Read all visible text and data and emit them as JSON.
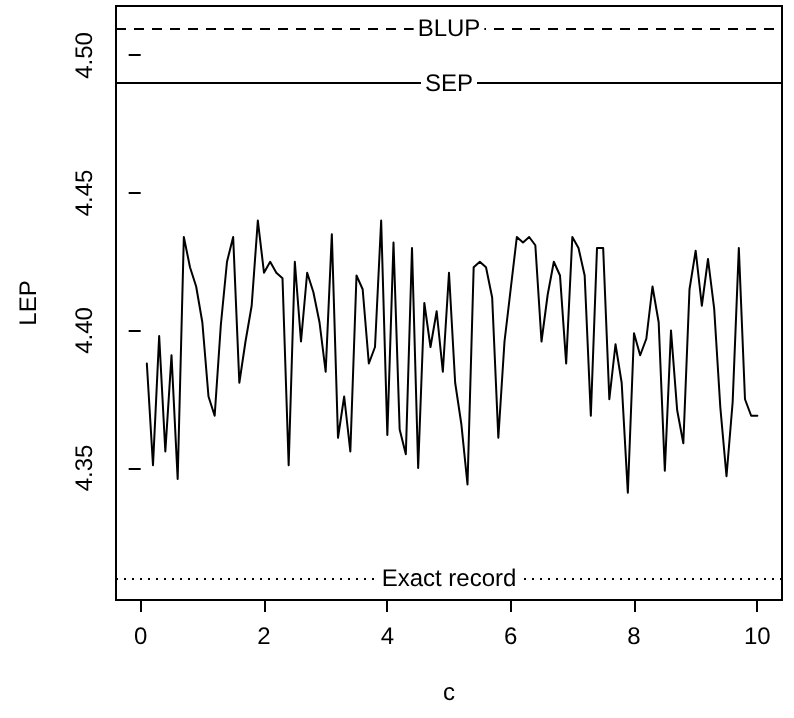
{
  "chart_data": {
    "type": "line",
    "xlabel": "c",
    "ylabel": "LEP",
    "x": [
      0.1,
      0.2,
      0.3,
      0.4,
      0.5,
      0.6,
      0.7,
      0.8,
      0.9,
      1.0,
      1.1,
      1.2,
      1.3,
      1.4,
      1.5,
      1.6,
      1.7,
      1.8,
      1.9,
      2.0,
      2.1,
      2.2,
      2.3,
      2.4,
      2.5,
      2.6,
      2.7,
      2.8,
      2.9,
      3.0,
      3.1,
      3.2,
      3.3,
      3.4,
      3.5,
      3.6,
      3.7,
      3.8,
      3.9,
      4.0,
      4.1,
      4.2,
      4.3,
      4.4,
      4.5,
      4.6,
      4.7,
      4.8,
      4.9,
      5.0,
      5.1,
      5.2,
      5.3,
      5.4,
      5.5,
      5.6,
      5.7,
      5.8,
      5.9,
      6.0,
      6.1,
      6.2,
      6.3,
      6.4,
      6.5,
      6.6,
      6.7,
      6.8,
      6.9,
      7.0,
      7.1,
      7.2,
      7.3,
      7.4,
      7.5,
      7.6,
      7.7,
      7.8,
      7.9,
      8.0,
      8.1,
      8.2,
      8.3,
      8.4,
      8.5,
      8.6,
      8.7,
      8.8,
      8.9,
      9.0,
      9.1,
      9.2,
      9.3,
      9.4,
      9.5,
      9.6,
      9.7,
      9.8,
      9.9,
      10.0
    ],
    "series": [
      {
        "color": "#000000",
        "values": [
          4.388,
          4.351,
          4.398,
          4.356,
          4.391,
          4.346,
          4.434,
          4.423,
          4.416,
          4.403,
          4.376,
          4.369,
          4.402,
          4.425,
          4.434,
          4.381,
          4.396,
          4.409,
          4.44,
          4.421,
          4.425,
          4.421,
          4.419,
          4.351,
          4.425,
          4.396,
          4.421,
          4.414,
          4.403,
          4.385,
          4.435,
          4.361,
          4.376,
          4.356,
          4.42,
          4.415,
          4.388,
          4.394,
          4.44,
          4.362,
          4.432,
          4.364,
          4.355,
          4.43,
          4.35,
          4.41,
          4.394,
          4.407,
          4.385,
          4.421,
          4.381,
          4.366,
          4.344,
          4.423,
          4.425,
          4.423,
          4.412,
          4.361,
          4.396,
          4.415,
          4.434,
          4.432,
          4.434,
          4.431,
          4.396,
          4.413,
          4.425,
          4.42,
          4.388,
          4.434,
          4.43,
          4.42,
          4.369,
          4.43,
          4.43,
          4.375,
          4.395,
          4.381,
          4.341,
          4.399,
          4.391,
          4.397,
          4.416,
          4.403,
          4.349,
          4.4,
          4.371,
          4.359,
          4.415,
          4.429,
          4.409,
          4.426,
          4.408,
          4.372,
          4.347,
          4.374,
          4.43,
          4.375,
          4.369,
          4.369
        ]
      }
    ],
    "xlim": [
      -0.4,
      10.4
    ],
    "ylim": [
      4.302,
      4.518
    ],
    "xticks": [
      0,
      2,
      4,
      6,
      8,
      10
    ],
    "yticks": [
      {
        "value": 4.35,
        "label": "4.35"
      },
      {
        "value": 4.4,
        "label": "4.40"
      },
      {
        "value": 4.45,
        "label": "4.45"
      },
      {
        "value": 4.5,
        "label": "4.50"
      }
    ],
    "ref_lines": [
      {
        "axis": "y",
        "value": 4.51,
        "label": "BLUP",
        "line_style": "dashed",
        "color": "#000000"
      },
      {
        "axis": "y",
        "value": 4.49,
        "label": "SEP",
        "line_style": "solid",
        "color": "#000000"
      },
      {
        "axis": "y",
        "value": 4.31,
        "label": "Exact record",
        "line_style": "dotted",
        "color": "#000000"
      }
    ],
    "grid": false,
    "marker": "none",
    "line_style": "solid"
  }
}
